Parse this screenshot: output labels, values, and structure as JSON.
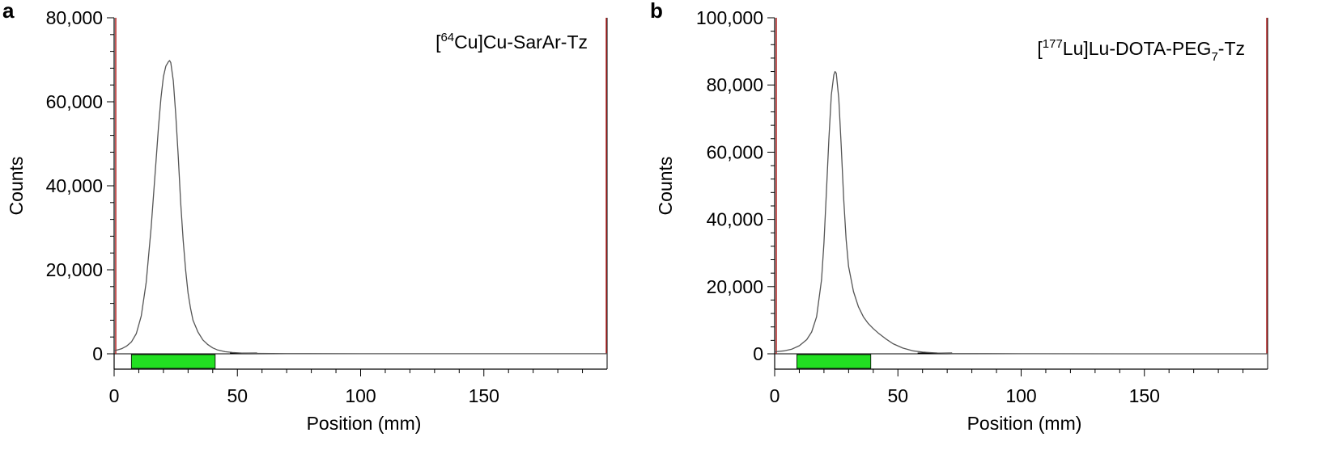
{
  "chart_data": [
    {
      "type": "line",
      "panel_label": "a",
      "annotation": {
        "prefix": "[",
        "sup": "64",
        "rest": "Cu]Cu-SarAr-Tz",
        "sub": "",
        "suffix": ""
      },
      "xlabel": "Position (mm)",
      "ylabel": "Counts",
      "xlim": [
        0,
        200
      ],
      "ylim": [
        0,
        80000
      ],
      "xticks": [
        0,
        50,
        100,
        150
      ],
      "xtick_labels": [
        "0",
        "50",
        "100",
        "150"
      ],
      "yticks": [
        0,
        20000,
        40000,
        60000,
        80000
      ],
      "ytick_labels": [
        "0",
        "20,000",
        "40,000",
        "60,000",
        "80,000"
      ],
      "series": [
        {
          "x": [
            0,
            3,
            5,
            7,
            9,
            11,
            13,
            15,
            17,
            18,
            19,
            20,
            21,
            22,
            22.5,
            23,
            24,
            25,
            26,
            27,
            28,
            29,
            30,
            31,
            32,
            34,
            36,
            38,
            40,
            42,
            45,
            48,
            52,
            58,
            70,
            100,
            150,
            200
          ],
          "y": [
            700,
            1200,
            1800,
            2800,
            4800,
            9000,
            17000,
            30000,
            46000,
            54000,
            61000,
            66000,
            68500,
            69500,
            69800,
            69300,
            65000,
            57000,
            47000,
            36000,
            27000,
            20000,
            14500,
            10800,
            8000,
            5200,
            3300,
            2200,
            1400,
            900,
            500,
            300,
            150,
            100,
            40,
            20,
            10,
            10
          ]
        }
      ],
      "region_of_interest": {
        "color": "#22e022",
        "x_start": 7,
        "x_end": 41
      },
      "baseline_segment": {
        "x_start": 47,
        "x_end": 58
      },
      "boundary_marker_color": "#b22222"
    },
    {
      "type": "line",
      "panel_label": "b",
      "annotation": {
        "prefix": "[",
        "sup": "177",
        "rest": "Lu]Lu-DOTA-PEG",
        "sub": "7",
        "suffix": "-Tz"
      },
      "xlabel": "Position (mm)",
      "ylabel": "Counts",
      "xlim": [
        0,
        200
      ],
      "ylim": [
        0,
        100000
      ],
      "xticks": [
        0,
        50,
        100,
        150
      ],
      "xtick_labels": [
        "0",
        "50",
        "100",
        "150"
      ],
      "yticks": [
        0,
        20000,
        40000,
        60000,
        80000,
        100000
      ],
      "ytick_labels": [
        "0",
        "20,000",
        "40,000",
        "60,000",
        "80,000",
        "100,000"
      ],
      "series": [
        {
          "x": [
            0,
            4,
            7,
            10,
            13,
            15,
            17,
            19,
            20,
            21,
            22,
            23,
            24,
            24.5,
            25,
            26,
            27,
            28,
            29,
            30,
            32,
            34,
            36,
            38,
            40,
            42,
            45,
            48,
            52,
            56,
            60,
            66,
            72,
            100,
            150,
            200
          ],
          "y": [
            600,
            900,
            1400,
            2400,
            4200,
            6500,
            11000,
            22000,
            33000,
            48000,
            64000,
            77000,
            83000,
            84000,
            83500,
            76000,
            62000,
            46000,
            34000,
            26000,
            18500,
            14000,
            11000,
            9000,
            7500,
            6200,
            4500,
            3000,
            1700,
            900,
            500,
            250,
            100,
            30,
            10,
            10
          ]
        }
      ],
      "region_of_interest": {
        "color": "#22e022",
        "x_start": 9,
        "x_end": 39
      },
      "baseline_segment": {
        "x_start": 58,
        "x_end": 72
      },
      "boundary_marker_color": "#b22222"
    }
  ]
}
